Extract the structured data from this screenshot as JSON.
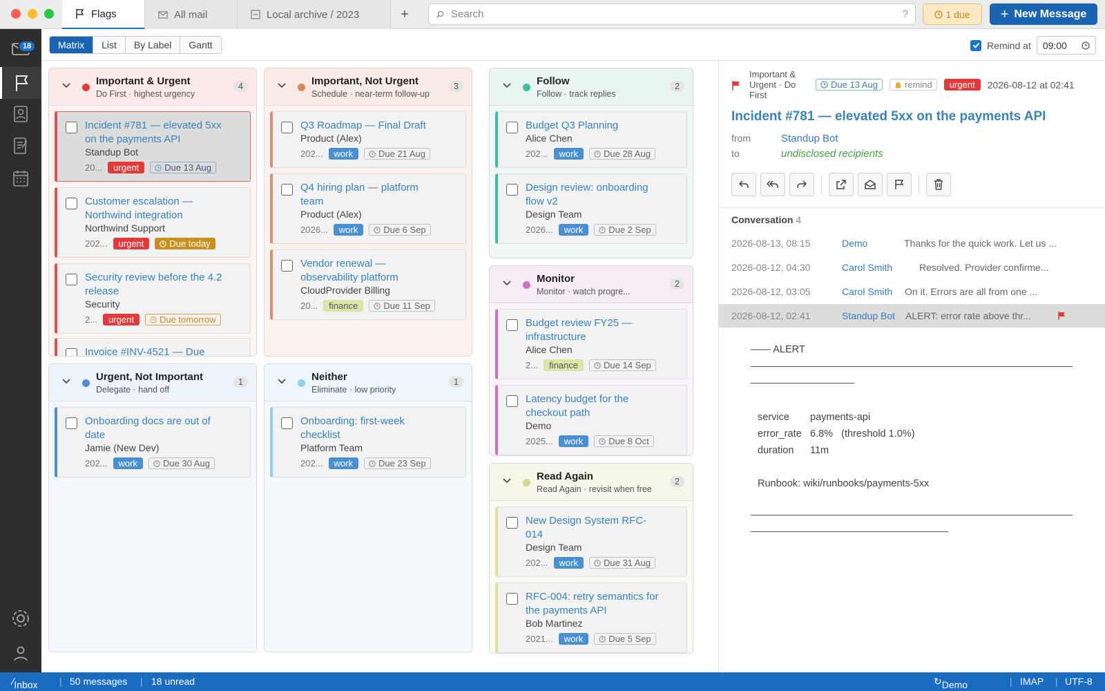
{
  "tabs": [
    {
      "label": "Flags",
      "icon": "flag-icon",
      "active": true
    },
    {
      "label": "All mail",
      "icon": "mail-stack-icon",
      "active": false
    },
    {
      "label": "Local archive / 2023",
      "icon": "archive-box-icon",
      "active": false
    }
  ],
  "tab_add": "+",
  "search": {
    "placeholder": "Search",
    "help": "?"
  },
  "due_badge": "1 due",
  "new_message": "New Message",
  "sidebar": {
    "mail_badge": "18",
    "items": [
      "mail-icon",
      "flag-icon",
      "contacts-icon",
      "notes-icon",
      "calendar-icon",
      "settings-icon",
      "account-icon"
    ]
  },
  "views": [
    "Matrix",
    "List",
    "By Label",
    "Gantt"
  ],
  "active_view": "Matrix",
  "remind": {
    "label": "Remind at",
    "checked": true,
    "time": "09:00"
  },
  "columns": [
    {
      "title": "Important & Urgent",
      "subtitle": "Do First · highest urgency",
      "count": "4",
      "dot_color": "#e03a3a",
      "cards": [
        {
          "title": "Incident #781 — elevated 5xx on the payments API",
          "sender": "Standup Bot",
          "date": "20...",
          "labels": [
            "urgent"
          ],
          "due": "Due 13 Aug",
          "selected": true
        },
        {
          "title": "Customer escalation — Northwind integration",
          "sender": "Northwind Support",
          "date": "202...",
          "labels": [
            "urgent"
          ],
          "due": "Due today"
        },
        {
          "title": "Security review before the 4.2 release",
          "sender": "Security",
          "date": "2...",
          "labels": [
            "urgent"
          ],
          "due": "Due tomorrow"
        },
        {
          "title": "Invoice #INV-4521 — Due",
          "sender": "",
          "date": "",
          "labels": [],
          "due": ""
        }
      ]
    },
    {
      "title": "Important, Not Urgent",
      "subtitle": "Schedule · near-term follow-up",
      "count": "3",
      "dot_color": "#d48a5a",
      "cards": [
        {
          "title": "Q3 Roadmap — Final Draft",
          "sender": "Product (Alex)",
          "date": "202...",
          "labels": [
            "work"
          ],
          "due": "Due 21 Aug"
        },
        {
          "title": "Q4 hiring plan — platform team",
          "sender": "Product (Alex)",
          "date": "2026...",
          "labels": [
            "work"
          ],
          "due": "Due 6 Sep"
        },
        {
          "title": "Vendor renewal — observability platform",
          "sender": "CloudProvider Billing",
          "date": "20...",
          "labels": [
            "finance"
          ],
          "due": "Due 11 Sep"
        }
      ]
    },
    {
      "title": "Follow",
      "subtitle": "Follow · track replies",
      "count": "2",
      "dot_color": "#3cc0a0",
      "cards": [
        {
          "title": "Budget Q3 Planning",
          "sender": "Alice Chen",
          "date": "202...",
          "labels": [
            "work"
          ],
          "due": "Due 28 Aug"
        },
        {
          "title": "Design review: onboarding flow v2",
          "sender": "Design Team",
          "date": "2026...",
          "labels": [
            "work"
          ],
          "due": "Due 2 Sep"
        }
      ]
    },
    {
      "title": "Urgent, Not Important",
      "subtitle": "Delegate · hand off",
      "count": "1",
      "dot_color": "#4a90d0",
      "cards": [
        {
          "title": "Onboarding docs are out of date",
          "sender": "Jamie (New Dev)",
          "date": "202...",
          "labels": [
            "work"
          ],
          "due": "Due 30 Aug"
        }
      ]
    },
    {
      "title": "Neither",
      "subtitle": "Eliminate · low priority",
      "count": "1",
      "dot_color": "#8ccff0",
      "cards": [
        {
          "title": "Onboarding: first-week checklist",
          "sender": "Platform Team",
          "date": "202...",
          "labels": [
            "work"
          ],
          "due": "Due 23 Sep"
        }
      ]
    },
    {
      "title": "Monitor",
      "subtitle": "Monitor · watch progre...",
      "count": "2",
      "dot_color": "#d070c0",
      "cards": [
        {
          "title": "Budget review FY25 — infrastructure",
          "sender": "Alice Chen",
          "date": "2...",
          "labels": [
            "finance"
          ],
          "due": "Due 14 Sep"
        },
        {
          "title": "Latency budget for the checkout path",
          "sender": "Demo",
          "date": "2025...",
          "labels": [
            "work"
          ],
          "due": "Due 8 Oct"
        }
      ]
    },
    {
      "title": "Read Again",
      "subtitle": "Read Again · revisit when free",
      "count": "2",
      "dot_color": "#d8d88a",
      "cards": [
        {
          "title": "New Design System RFC-014",
          "sender": "Design Team",
          "date": "202...",
          "labels": [
            "work"
          ],
          "due": "Due 31 Aug"
        },
        {
          "title": "RFC-004: retry semantics for the payments API",
          "sender": "Bob Martinez",
          "date": "2021...",
          "labels": [
            "work"
          ],
          "due": "Due 5 Sep"
        }
      ]
    }
  ],
  "reader": {
    "status": "Important & Urgent · Do First",
    "due": "Due 13 Aug",
    "remind": "remind",
    "label": "urgent",
    "date": "2026-08-12 at 02:41",
    "subject": "Incident #781 — elevated 5xx on the payments API",
    "from_label": "from",
    "from": "Standup Bot",
    "to_label": "to",
    "to": "undisclosed recipients",
    "toolbar": [
      "reply-icon",
      "reply-all-icon",
      "forward-icon",
      "open-external-icon",
      "mark-unread-icon",
      "flag-icon",
      "trash-icon"
    ],
    "conversation_title": "Conversation",
    "conversation_count": "4",
    "conversation": [
      {
        "date": "2026-08-13, 08:15",
        "from": "Demo",
        "preview": "Thanks for the quick work. Let us ..."
      },
      {
        "date": "2026-08-12, 04:30",
        "from": "Carol Smith",
        "preview": "Resolved. Provider confirme..."
      },
      {
        "date": "2026-08-12, 03:05",
        "from": "Carol Smith",
        "preview": "On it. Errors are all from one ..."
      },
      {
        "date": "2026-08-12, 02:41",
        "from": "Standup Bot",
        "preview": "ALERT: error rate above thr...",
        "selected": true
      }
    ],
    "body": {
      "alert": "—— ALERT",
      "lines": [
        {
          "k": "service",
          "v": "payments-api"
        },
        {
          "k": "error_rate",
          "v": "6.8%   (threshold 1.0%)"
        },
        {
          "k": "duration",
          "v": "11m"
        }
      ],
      "runbook": "Runbook: wiki/runbooks/payments-5xx"
    }
  },
  "statusbar": {
    "folder": "Inbox",
    "messages": "50 messages",
    "unread": "18 unread",
    "mode": "Demo mode",
    "protocol": "IMAP",
    "encoding": "UTF-8"
  }
}
